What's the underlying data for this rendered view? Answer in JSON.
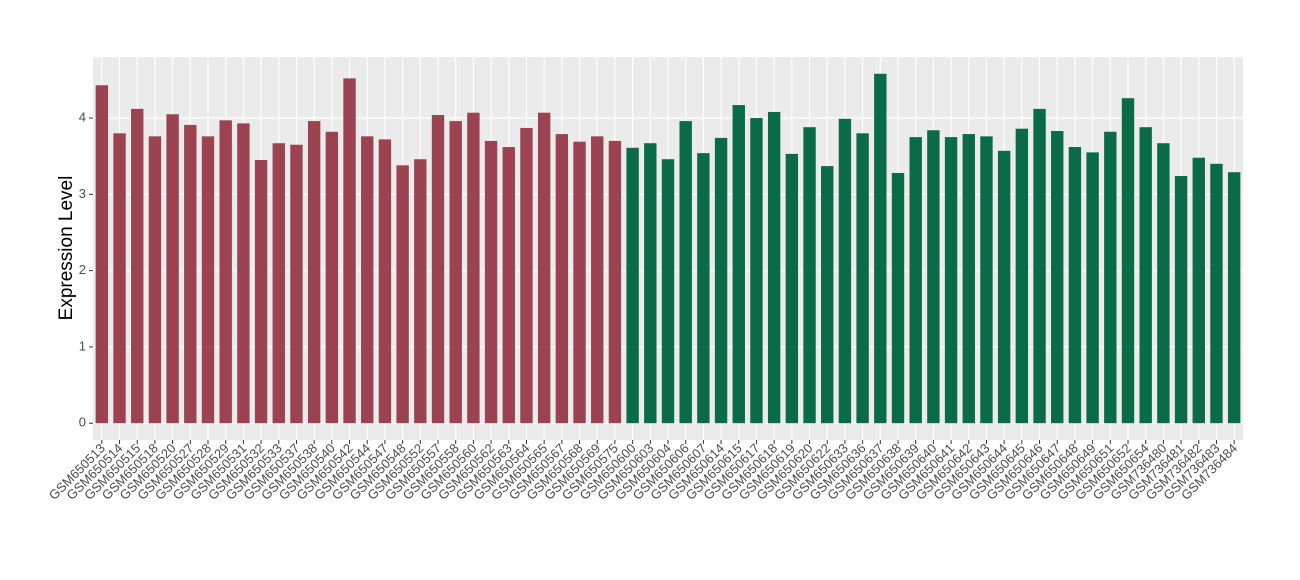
{
  "chart_data": {
    "type": "bar",
    "y_label": "Expression Level",
    "categories": [
      "GSM650513",
      "GSM650514",
      "GSM650515",
      "GSM650518",
      "GSM650520",
      "GSM650527",
      "GSM650528",
      "GSM650529",
      "GSM650531",
      "GSM650532",
      "GSM650533",
      "GSM650537",
      "GSM650538",
      "GSM650540",
      "GSM650542",
      "GSM650544",
      "GSM650547",
      "GSM650548",
      "GSM650552",
      "GSM650557",
      "GSM650558",
      "GSM650560",
      "GSM650562",
      "GSM650563",
      "GSM650564",
      "GSM650565",
      "GSM650567",
      "GSM650568",
      "GSM650569",
      "GSM650575",
      "GSM650600",
      "GSM650603",
      "GSM650604",
      "GSM650606",
      "GSM650607",
      "GSM650614",
      "GSM650615",
      "GSM650617",
      "GSM650618",
      "GSM650619",
      "GSM650620",
      "GSM650622",
      "GSM650633",
      "GSM650636",
      "GSM650637",
      "GSM650638",
      "GSM650639",
      "GSM650640",
      "GSM650641",
      "GSM650642",
      "GSM650643",
      "GSM650644",
      "GSM650645",
      "GSM650646",
      "GSM650647",
      "GSM650648",
      "GSM650649",
      "GSM650651",
      "GSM650652",
      "GSM650654",
      "GSM736480",
      "GSM736481",
      "GSM736482",
      "GSM736483",
      "GSM736484"
    ],
    "values": [
      4.43,
      3.8,
      4.12,
      3.76,
      4.05,
      3.91,
      3.76,
      3.97,
      3.93,
      3.45,
      3.67,
      3.65,
      3.96,
      3.82,
      4.52,
      3.76,
      3.72,
      3.38,
      3.46,
      4.04,
      3.96,
      4.07,
      3.7,
      3.62,
      3.87,
      4.07,
      3.79,
      3.69,
      3.76,
      3.7,
      3.61,
      3.67,
      3.46,
      3.96,
      3.54,
      3.74,
      4.17,
      4.0,
      4.08,
      3.53,
      3.88,
      3.37,
      3.99,
      3.8,
      4.58,
      3.28,
      3.75,
      3.84,
      3.75,
      3.79,
      3.76,
      3.57,
      3.86,
      4.12,
      3.83,
      3.62,
      3.55,
      3.82,
      4.26,
      3.88,
      3.67,
      3.24,
      3.48,
      3.4,
      3.29
    ],
    "colors": [
      "#9b4351",
      "#9b4351",
      "#9b4351",
      "#9b4351",
      "#9b4351",
      "#9b4351",
      "#9b4351",
      "#9b4351",
      "#9b4351",
      "#9b4351",
      "#9b4351",
      "#9b4351",
      "#9b4351",
      "#9b4351",
      "#9b4351",
      "#9b4351",
      "#9b4351",
      "#9b4351",
      "#9b4351",
      "#9b4351",
      "#9b4351",
      "#9b4351",
      "#9b4351",
      "#9b4351",
      "#9b4351",
      "#9b4351",
      "#9b4351",
      "#9b4351",
      "#9b4351",
      "#9b4351",
      "#0a6b48",
      "#0a6b48",
      "#0a6b48",
      "#0a6b48",
      "#0a6b48",
      "#0a6b48",
      "#0a6b48",
      "#0a6b48",
      "#0a6b48",
      "#0a6b48",
      "#0a6b48",
      "#0a6b48",
      "#0a6b48",
      "#0a6b48",
      "#0a6b48",
      "#0a6b48",
      "#0a6b48",
      "#0a6b48",
      "#0a6b48",
      "#0a6b48",
      "#0a6b48",
      "#0a6b48",
      "#0a6b48",
      "#0a6b48",
      "#0a6b48",
      "#0a6b48",
      "#0a6b48",
      "#0a6b48",
      "#0a6b48",
      "#0a6b48",
      "#0a6b48",
      "#0a6b48",
      "#0a6b48",
      "#0a6b48",
      "#0a6b48"
    ],
    "ylim": [
      -0.22,
      4.8
    ],
    "yticks": [
      0,
      1,
      2,
      3,
      4
    ],
    "grid": true,
    "panel_color": "#ebebeb"
  }
}
